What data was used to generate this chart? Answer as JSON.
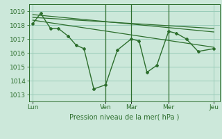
{
  "xlabel": "Pression niveau de la mer( hPa )",
  "bg_color": "#cce8da",
  "grid_color": "#99ccb8",
  "line_color": "#2d6e2d",
  "ylim": [
    1012.5,
    1019.5
  ],
  "xlim": [
    -0.2,
    9.5
  ],
  "day_labels": [
    "Lun",
    "Ven",
    "Mar",
    "Mer",
    "Jeu"
  ],
  "day_positions": [
    0.0,
    3.7,
    5.0,
    6.9,
    9.2
  ],
  "vline_positions": [
    3.7,
    5.0,
    6.9
  ],
  "main_x": [
    0.0,
    0.4,
    0.9,
    1.3,
    1.8,
    2.2,
    2.6,
    3.1,
    3.7,
    4.3,
    5.0,
    5.4,
    5.8,
    6.3,
    6.9,
    7.3,
    7.8,
    8.4,
    9.2
  ],
  "main_y": [
    1018.1,
    1018.85,
    1017.75,
    1017.75,
    1017.2,
    1016.55,
    1016.3,
    1013.4,
    1013.7,
    1016.2,
    1017.0,
    1016.85,
    1014.6,
    1015.1,
    1017.55,
    1017.4,
    1017.0,
    1016.1,
    1016.3
  ],
  "trend1_x": [
    0.0,
    9.2
  ],
  "trend1_y": [
    1018.75,
    1017.5
  ],
  "trend2_x": [
    0.0,
    9.2
  ],
  "trend2_y": [
    1018.55,
    1017.75
  ],
  "trend3_x": [
    0.0,
    9.2
  ],
  "trend3_y": [
    1018.35,
    1016.4
  ],
  "yticks": [
    1013,
    1014,
    1015,
    1016,
    1017,
    1018,
    1019
  ],
  "font_size_label": 7,
  "font_size_tick": 6.5,
  "tick_color": "#2d6e2d",
  "spine_color": "#2d6e2d"
}
